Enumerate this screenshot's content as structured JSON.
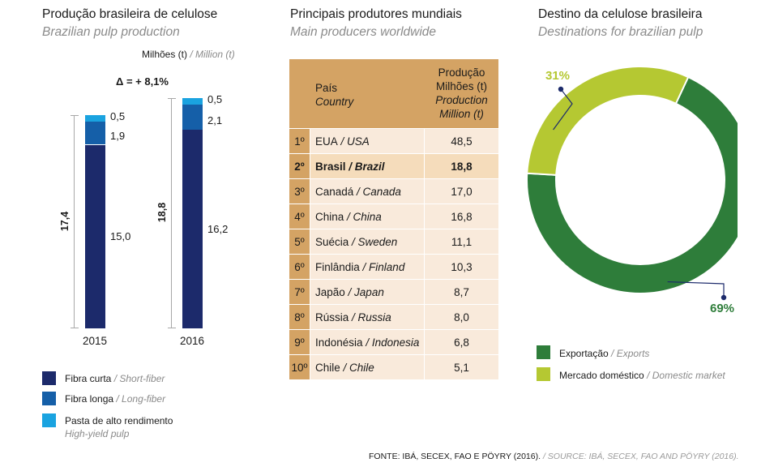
{
  "chart_data": [
    {
      "type": "bar",
      "title": "Produção brasileira de celulose",
      "subtitle": "Brazilian pulp production",
      "unit": "Milhões (t)",
      "unit_en": "/ Million (t)",
      "delta": "Δ = + 8,1%",
      "categories": [
        "2015",
        "2016"
      ],
      "totals": [
        "17,4",
        "18,8"
      ],
      "series": [
        {
          "name": "Fibra curta",
          "name_en": "/ Short-fiber",
          "color": "#1c2a6b",
          "values": [
            15.0,
            16.2
          ],
          "labels": [
            "15,0",
            "16,2"
          ]
        },
        {
          "name": "Fibra longa",
          "name_en": "/ Long-fiber",
          "color": "#155fa8",
          "values": [
            1.9,
            2.1
          ],
          "labels": [
            "1,9",
            "2,1"
          ]
        },
        {
          "name": "Pasta de alto rendimento",
          "name_en": "High-yield pulp",
          "color": "#1aa3e0",
          "values": [
            0.5,
            0.5
          ],
          "labels": [
            "0,5",
            "0,5"
          ]
        }
      ]
    },
    {
      "type": "table",
      "title": "Principais produtores mundiais",
      "subtitle": "Main producers worldwide",
      "header_country": "País",
      "header_country_en": "Country",
      "header_value": [
        "Produção",
        "Milhões (t)"
      ],
      "header_value_en": [
        "Production",
        "Million (t)"
      ],
      "highlight_color": "#f5dcbb",
      "row_color": "#f9eadb",
      "rank_color": "#d4a364",
      "rows": [
        {
          "rank": "1º",
          "country": "EUA",
          "country_en": "/ USA",
          "value": "48,5",
          "bold": false
        },
        {
          "rank": "2º",
          "country": "Brasil",
          "country_en": "/ Brazil",
          "value": "18,8",
          "bold": true
        },
        {
          "rank": "3º",
          "country": "Canadá",
          "country_en": "/ Canada",
          "value": "17,0",
          "bold": false
        },
        {
          "rank": "4º",
          "country": "China",
          "country_en": "/ China",
          "value": "16,8",
          "bold": false
        },
        {
          "rank": "5º",
          "country": "Suécia",
          "country_en": "/ Sweden",
          "value": "11,1",
          "bold": false
        },
        {
          "rank": "6º",
          "country": "Finlândia",
          "country_en": "/ Finland",
          "value": "10,3",
          "bold": false
        },
        {
          "rank": "7º",
          "country": "Japão",
          "country_en": "/ Japan",
          "value": "8,7",
          "bold": false
        },
        {
          "rank": "8º",
          "country": "Rússia",
          "country_en": "/ Russia",
          "value": "8,0",
          "bold": false
        },
        {
          "rank": "9º",
          "country": "Indonésia",
          "country_en": "/ Indonesia",
          "value": "6,8",
          "bold": false
        },
        {
          "rank": "10º",
          "country": "Chile",
          "country_en": "/ Chile",
          "value": "5,1",
          "bold": false
        }
      ]
    },
    {
      "type": "pie",
      "title": "Destino da celulose brasileira",
      "subtitle": "Destinations for brazilian pulp",
      "slices": [
        {
          "name": "Exportação",
          "name_en": "/ Exports",
          "value": 69,
          "label": "69%",
          "color": "#2e7d3a"
        },
        {
          "name": "Mercado doméstico",
          "name_en": "/ Domestic market",
          "value": 31,
          "label": "31%",
          "color": "#b5c832"
        }
      ]
    }
  ],
  "footer": {
    "pt": "FONTE: IBÁ, SECEX, FAO E PÖYRY (2016).",
    "en": "/ SOURCE: IBÁ, SECEX, FAO AND PÖYRY (2016)."
  }
}
